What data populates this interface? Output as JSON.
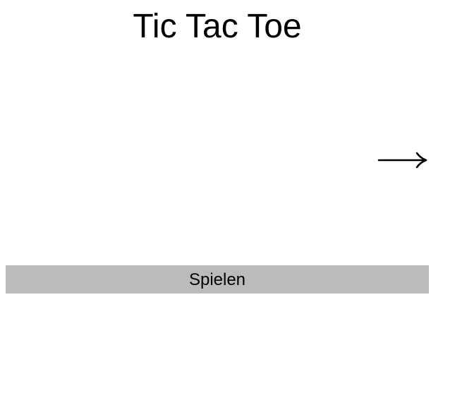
{
  "page": {
    "title": "Tic Tac Toe"
  },
  "navigation": {
    "next_icon": "right-arrow-icon"
  },
  "actions": {
    "play_label": "Spielen"
  },
  "colors": {
    "background": "#ffffff",
    "button_background": "#bbbbbb",
    "text": "#000000"
  }
}
